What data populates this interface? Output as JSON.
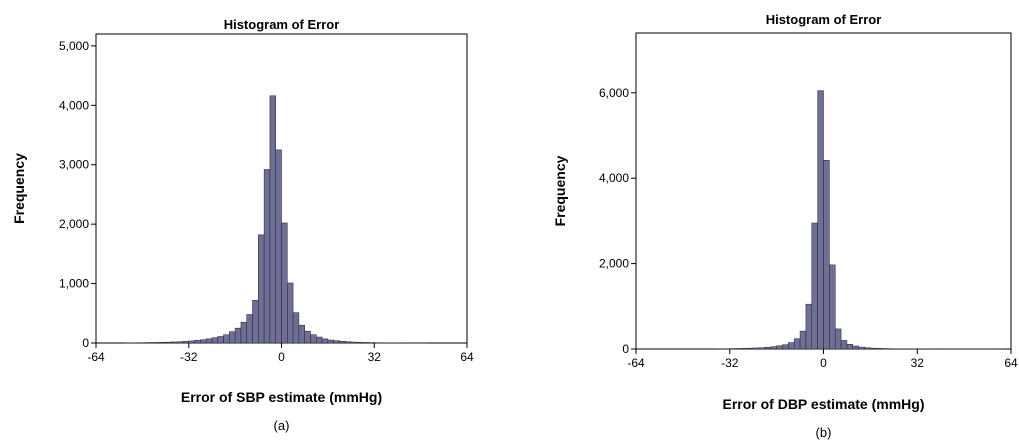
{
  "chart_data": [
    {
      "type": "bar",
      "title": "Histogram of Error",
      "xlabel": "Error of SBP estimate (mmHg)",
      "ylabel": "Frequency",
      "caption": "(a)",
      "xlim": [
        -64,
        64
      ],
      "ylim": [
        0,
        5200
      ],
      "xticks": [
        "-64",
        "-32",
        "0",
        "32",
        "64"
      ],
      "yticks": [
        "0",
        "1,000",
        "2,000",
        "3,000",
        "4,000",
        "5,000"
      ],
      "bin_width": 2,
      "bins": [
        {
          "x": -54,
          "y": 3
        },
        {
          "x": -52,
          "y": 4
        },
        {
          "x": -50,
          "y": 5
        },
        {
          "x": -48,
          "y": 6
        },
        {
          "x": -46,
          "y": 8
        },
        {
          "x": -44,
          "y": 10
        },
        {
          "x": -42,
          "y": 12
        },
        {
          "x": -40,
          "y": 15
        },
        {
          "x": -38,
          "y": 18
        },
        {
          "x": -36,
          "y": 22
        },
        {
          "x": -34,
          "y": 28
        },
        {
          "x": -32,
          "y": 35
        },
        {
          "x": -30,
          "y": 45
        },
        {
          "x": -28,
          "y": 55
        },
        {
          "x": -26,
          "y": 70
        },
        {
          "x": -24,
          "y": 90
        },
        {
          "x": -22,
          "y": 110
        },
        {
          "x": -20,
          "y": 140
        },
        {
          "x": -18,
          "y": 190
        },
        {
          "x": -16,
          "y": 250
        },
        {
          "x": -14,
          "y": 350
        },
        {
          "x": -12,
          "y": 480
        },
        {
          "x": -10,
          "y": 720
        },
        {
          "x": -8,
          "y": 1820
        },
        {
          "x": -6,
          "y": 2920
        },
        {
          "x": -4,
          "y": 4160
        },
        {
          "x": -2,
          "y": 3250
        },
        {
          "x": 0,
          "y": 2020
        },
        {
          "x": 2,
          "y": 1010
        },
        {
          "x": 4,
          "y": 510
        },
        {
          "x": 6,
          "y": 300
        },
        {
          "x": 8,
          "y": 200
        },
        {
          "x": 10,
          "y": 140
        },
        {
          "x": 12,
          "y": 100
        },
        {
          "x": 14,
          "y": 70
        },
        {
          "x": 16,
          "y": 50
        },
        {
          "x": 18,
          "y": 40
        },
        {
          "x": 20,
          "y": 30
        },
        {
          "x": 22,
          "y": 22
        },
        {
          "x": 24,
          "y": 16
        },
        {
          "x": 26,
          "y": 12
        },
        {
          "x": 28,
          "y": 9
        },
        {
          "x": 30,
          "y": 7
        },
        {
          "x": 32,
          "y": 5
        },
        {
          "x": 34,
          "y": 4
        },
        {
          "x": 36,
          "y": 3
        },
        {
          "x": 38,
          "y": 2
        },
        {
          "x": 40,
          "y": 2
        },
        {
          "x": 42,
          "y": 1
        },
        {
          "x": 44,
          "y": 1
        },
        {
          "x": 46,
          "y": 1
        },
        {
          "x": 48,
          "y": 1
        }
      ]
    },
    {
      "type": "bar",
      "title": "Histogram of Error",
      "xlabel": "Error of DBP estimate (mmHg)",
      "ylabel": "Frequency",
      "caption": "(b)",
      "xlim": [
        -64,
        64
      ],
      "ylim": [
        0,
        7400
      ],
      "xticks": [
        "-64",
        "-32",
        "0",
        "32",
        "64"
      ],
      "yticks": [
        "0",
        "2,000",
        "4,000",
        "6,000"
      ],
      "bin_width": 2,
      "bins": [
        {
          "x": -36,
          "y": 5
        },
        {
          "x": -34,
          "y": 7
        },
        {
          "x": -32,
          "y": 9
        },
        {
          "x": -30,
          "y": 12
        },
        {
          "x": -28,
          "y": 15
        },
        {
          "x": -26,
          "y": 20
        },
        {
          "x": -24,
          "y": 25
        },
        {
          "x": -22,
          "y": 30
        },
        {
          "x": -20,
          "y": 40
        },
        {
          "x": -18,
          "y": 55
        },
        {
          "x": -16,
          "y": 75
        },
        {
          "x": -14,
          "y": 100
        },
        {
          "x": -12,
          "y": 150
        },
        {
          "x": -10,
          "y": 240
        },
        {
          "x": -8,
          "y": 420
        },
        {
          "x": -6,
          "y": 1050
        },
        {
          "x": -4,
          "y": 2950
        },
        {
          "x": -2,
          "y": 6050
        },
        {
          "x": 0,
          "y": 4420
        },
        {
          "x": 2,
          "y": 1970
        },
        {
          "x": 4,
          "y": 470
        },
        {
          "x": 6,
          "y": 200
        },
        {
          "x": 8,
          "y": 110
        },
        {
          "x": 10,
          "y": 70
        },
        {
          "x": 12,
          "y": 45
        },
        {
          "x": 14,
          "y": 30
        },
        {
          "x": 16,
          "y": 20
        },
        {
          "x": 18,
          "y": 15
        },
        {
          "x": 20,
          "y": 10
        },
        {
          "x": 22,
          "y": 8
        },
        {
          "x": 24,
          "y": 6
        },
        {
          "x": 26,
          "y": 5
        },
        {
          "x": 28,
          "y": 4
        },
        {
          "x": 30,
          "y": 3
        },
        {
          "x": 32,
          "y": 3
        },
        {
          "x": 34,
          "y": 2
        },
        {
          "x": 36,
          "y": 2
        },
        {
          "x": 38,
          "y": 2
        },
        {
          "x": 40,
          "y": 1
        },
        {
          "x": 42,
          "y": 1
        },
        {
          "x": 44,
          "y": 1
        },
        {
          "x": 46,
          "y": 1
        },
        {
          "x": 48,
          "y": 1
        },
        {
          "x": 50,
          "y": 1
        },
        {
          "x": 52,
          "y": 1
        },
        {
          "x": 54,
          "y": 1
        },
        {
          "x": 56,
          "y": 1
        },
        {
          "x": 58,
          "y": 1
        },
        {
          "x": 60,
          "y": 1
        }
      ]
    }
  ]
}
